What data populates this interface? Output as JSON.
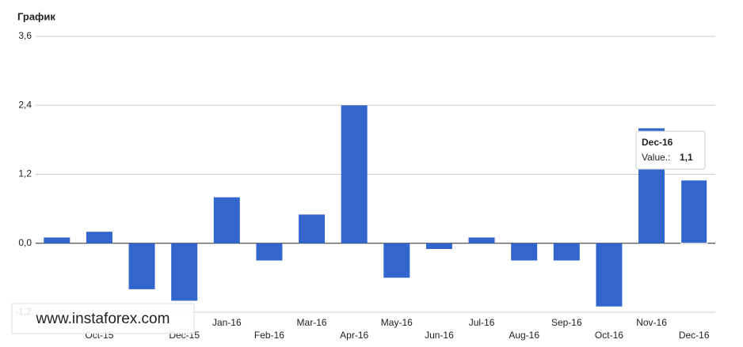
{
  "chart_data": {
    "type": "bar",
    "title": "График",
    "categories": [
      null,
      "Oct-15",
      null,
      "Dec-15",
      "Jan-16",
      "Feb-16",
      "Mar-16",
      "Apr-16",
      "May-16",
      "Jun-16",
      "Jul-16",
      "Aug-16",
      "Sep-16",
      "Oct-16",
      "Nov-16",
      "Dec-16"
    ],
    "values": [
      0.1,
      0.2,
      -0.8,
      -1.0,
      0.8,
      -0.3,
      0.5,
      2.4,
      -0.6,
      -0.1,
      0.1,
      -0.3,
      -0.3,
      -1.1,
      2.0,
      1.1
    ],
    "color": "#3366cc",
    "ylim": [
      -1.2,
      3.6
    ],
    "yticks": [
      {
        "value": -1.2,
        "label": "-1,2"
      },
      {
        "value": 0,
        "label": "0,0"
      },
      {
        "value": 1.2,
        "label": "1,2"
      },
      {
        "value": 2.4,
        "label": "2,4"
      },
      {
        "value": 3.6,
        "label": "3,6"
      }
    ],
    "grid": true,
    "tooltip": {
      "title": "Dec-16",
      "label": "Value.:",
      "value": "1,1"
    }
  },
  "watermark": "www.instaforex.com"
}
